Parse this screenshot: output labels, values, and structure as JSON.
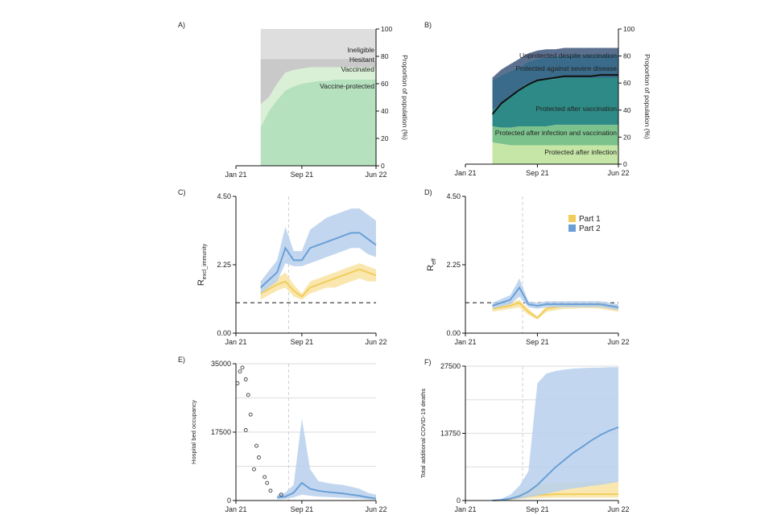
{
  "colors": {
    "part1": "#f2cd5c",
    "part1_band": "#f8e3a1",
    "part2": "#6a9fd6",
    "part2_band": "#b7d0ec",
    "ineligible": "#dedede",
    "hesitant": "#c9c9c9",
    "vaccinated": "#daf0d6",
    "vaccine_protected": "#b5e1bf",
    "unprotected": "#5b6f8f",
    "severe": "#3a6b8a",
    "after_vacc": "#2e8a86",
    "after_inf_vacc": "#7cc28c",
    "after_inf": "#c5e6a6",
    "observed": "#222222"
  },
  "chart_data": [
    {
      "panel": "A)",
      "type": "area",
      "x_ticks": [
        "Jan 21",
        "Sep 21",
        "Jun 22"
      ],
      "y_ticks": [
        "0",
        "20",
        "40",
        "60",
        "80",
        "100"
      ],
      "ylabel": "Proportion of population (%)",
      "ylim": [
        0,
        100
      ],
      "x": [
        "Apr 21",
        "May 21",
        "Jun 21",
        "Jul 21",
        "Aug 21",
        "Sep 21",
        "Oct 21",
        "Nov 21",
        "Dec 21",
        "Jan 22",
        "Feb 22",
        "Mar 22",
        "Apr 22",
        "May 22",
        "Jun 22"
      ],
      "series": [
        {
          "name": "Vaccine-protected",
          "values": [
            28,
            40,
            48,
            55,
            58,
            60,
            61,
            62,
            62,
            63,
            63,
            63,
            63,
            63,
            63
          ]
        },
        {
          "name": "Vaccinated",
          "values": [
            45,
            50,
            60,
            68,
            70,
            71,
            72,
            72,
            72,
            72,
            72,
            72,
            72,
            72,
            72
          ]
        },
        {
          "name": "Hesitant",
          "values": [
            78,
            78,
            78,
            78,
            78,
            78,
            78,
            78,
            78,
            78,
            78,
            78,
            78,
            78,
            78
          ]
        },
        {
          "name": "Ineligible",
          "values": [
            100,
            100,
            100,
            100,
            100,
            100,
            100,
            100,
            100,
            100,
            100,
            100,
            100,
            100,
            100
          ]
        }
      ],
      "labels": [
        "Ineligible",
        "Hesitant",
        "Vaccinated",
        "Vaccine-protected"
      ]
    },
    {
      "panel": "B)",
      "type": "area",
      "x_ticks": [
        "Jan 21",
        "Sep 21",
        "Jun 22"
      ],
      "y_ticks": [
        "0",
        "20",
        "40",
        "60",
        "80",
        "100"
      ],
      "ylabel": "Proportion of population (%)",
      "ylim": [
        0,
        100
      ],
      "x": [
        "Apr 21",
        "May 21",
        "Jun 21",
        "Jul 21",
        "Aug 21",
        "Sep 21",
        "Oct 21",
        "Nov 21",
        "Dec 21",
        "Jan 22",
        "Feb 22",
        "Mar 22",
        "Apr 22",
        "May 22",
        "Jun 22"
      ],
      "series": [
        {
          "name": "Protected after infection",
          "values": [
            16,
            15,
            14,
            14,
            14,
            14,
            14,
            14,
            14,
            14,
            14,
            14,
            14,
            14,
            14
          ]
        },
        {
          "name": "Protected after infection and vaccination",
          "values": [
            28,
            27,
            27,
            28,
            28,
            28,
            28,
            29,
            29,
            29,
            29,
            29,
            29,
            29,
            29
          ]
        },
        {
          "name": "Protected after vaccination",
          "values": [
            40,
            45,
            50,
            56,
            60,
            62,
            63,
            63,
            64,
            64,
            64,
            64,
            64,
            64,
            64
          ]
        },
        {
          "name": "Protected against severe disease",
          "values": [
            62,
            66,
            69,
            72,
            76,
            78,
            79,
            80,
            80,
            81,
            81,
            81,
            81,
            81,
            81
          ]
        },
        {
          "name": "Unprotected despite vaccination",
          "values": [
            64,
            70,
            74,
            78,
            82,
            84,
            85,
            85,
            86,
            86,
            86,
            86,
            86,
            86,
            86
          ]
        }
      ],
      "line": {
        "values": [
          37,
          45,
          50,
          55,
          59,
          62,
          63,
          64,
          65,
          65,
          65,
          65,
          66,
          66,
          66
        ]
      },
      "labels": [
        "Unprotected despite vaccination",
        "Protected against severe disease",
        "Protected after vaccination",
        "Protected after infection and vaccination",
        "Protected after infection"
      ]
    },
    {
      "panel": "C)",
      "type": "line",
      "x_ticks": [
        "Jan 21",
        "Sep 21",
        "Jun 22"
      ],
      "y_ticks": [
        "0.00",
        "2.25",
        "4.50"
      ],
      "ylabel": "R",
      "ylabel_sub": "excl_immunity",
      "ylim": [
        0,
        4.5
      ],
      "reference_y": 1.0,
      "x": [
        "Apr 21",
        "Jun 21",
        "Jul 21",
        "Aug 21",
        "Sep 21",
        "Oct 21",
        "Nov 21",
        "Dec 21",
        "Jan 22",
        "Feb 22",
        "Mar 22",
        "Apr 22",
        "May 22",
        "Jun 22"
      ],
      "series": [
        {
          "name": "Part 1",
          "values": [
            1.3,
            1.6,
            1.7,
            1.4,
            1.2,
            1.5,
            1.6,
            1.7,
            1.8,
            1.9,
            2.0,
            2.1,
            2.0,
            1.9
          ],
          "lower": [
            1.1,
            1.4,
            1.5,
            1.2,
            1.1,
            1.3,
            1.4,
            1.5,
            1.5,
            1.6,
            1.7,
            1.8,
            1.7,
            1.7
          ],
          "upper": [
            1.5,
            1.8,
            2.0,
            1.6,
            1.3,
            1.7,
            1.8,
            1.9,
            2.0,
            2.1,
            2.2,
            2.3,
            2.2,
            2.1
          ]
        },
        {
          "name": "Part 2",
          "values": [
            1.5,
            2.0,
            2.8,
            2.4,
            2.4,
            2.8,
            2.9,
            3.0,
            3.1,
            3.2,
            3.3,
            3.3,
            3.1,
            2.9
          ],
          "lower": [
            1.3,
            1.7,
            2.3,
            2.2,
            2.2,
            2.3,
            2.4,
            2.5,
            2.6,
            2.7,
            2.8,
            2.8,
            2.6,
            2.5
          ],
          "upper": [
            1.7,
            2.4,
            3.5,
            2.7,
            2.7,
            3.4,
            3.6,
            3.8,
            3.9,
            4.0,
            4.1,
            4.1,
            3.9,
            3.7
          ]
        }
      ]
    },
    {
      "panel": "D)",
      "type": "line",
      "x_ticks": [
        "Jan 21",
        "Sep 21",
        "Jun 22"
      ],
      "y_ticks": [
        "0.00",
        "2.25",
        "4.50"
      ],
      "ylabel": "R",
      "ylabel_sub": "eff",
      "ylim": [
        0,
        4.5
      ],
      "reference_y": 1.0,
      "legend": [
        "Part 1",
        "Part 2"
      ],
      "x": [
        "Apr 21",
        "Jun 21",
        "Jul 21",
        "Aug 21",
        "Sep 21",
        "Oct 21",
        "Nov 21",
        "Dec 21",
        "Jan 22",
        "Feb 22",
        "Mar 22",
        "Apr 22",
        "May 22",
        "Jun 22"
      ],
      "series": [
        {
          "name": "Part 1",
          "values": [
            0.8,
            0.9,
            1.0,
            0.7,
            0.5,
            0.8,
            0.85,
            0.9,
            0.9,
            0.92,
            0.92,
            0.9,
            0.85,
            0.8
          ],
          "lower": [
            0.7,
            0.8,
            0.85,
            0.6,
            0.45,
            0.7,
            0.75,
            0.8,
            0.8,
            0.82,
            0.82,
            0.8,
            0.75,
            0.7
          ],
          "upper": [
            0.9,
            1.0,
            1.1,
            0.8,
            0.55,
            0.9,
            0.95,
            1.0,
            1.0,
            1.0,
            1.0,
            1.0,
            0.95,
            0.9
          ]
        },
        {
          "name": "Part 2",
          "values": [
            0.9,
            1.1,
            1.5,
            0.95,
            0.9,
            0.95,
            0.95,
            0.95,
            0.95,
            0.95,
            0.95,
            0.95,
            0.9,
            0.85
          ],
          "lower": [
            0.8,
            0.95,
            1.2,
            0.85,
            0.8,
            0.85,
            0.85,
            0.85,
            0.85,
            0.85,
            0.85,
            0.85,
            0.8,
            0.75
          ],
          "upper": [
            1.0,
            1.25,
            1.8,
            1.05,
            1.0,
            1.05,
            1.05,
            1.05,
            1.05,
            1.05,
            1.05,
            1.05,
            1.0,
            0.95
          ]
        }
      ]
    },
    {
      "panel": "E)",
      "type": "line",
      "x_ticks": [
        "Jan 21",
        "Sep 21",
        "Jun 22"
      ],
      "y_ticks": [
        "0",
        "17500",
        "35000"
      ],
      "ylabel": "Hospital bed occupancy",
      "ylim": [
        0,
        35000
      ],
      "reference_lines": [
        8750,
        26250
      ],
      "observed": {
        "x": [
          "Jan 21",
          "Jan 21",
          "Jan 21",
          "Feb 21",
          "Feb 21",
          "Feb 21",
          "Feb 21",
          "Mar 21",
          "Mar 21",
          "Mar 21",
          "Apr 21",
          "Apr 21",
          "May 21",
          "Jun 21"
        ],
        "values": [
          30000,
          33000,
          34000,
          31000,
          27000,
          22000,
          18000,
          14000,
          11000,
          8000,
          6000,
          4500,
          2500,
          1500
        ]
      },
      "x": [
        "Jun 21",
        "Jul 21",
        "Aug 21",
        "Sep 21",
        "Oct 21",
        "Nov 21",
        "Dec 21",
        "Jan 22",
        "Feb 22",
        "Mar 22",
        "Apr 22",
        "May 22",
        "Jun 22"
      ],
      "series": [
        {
          "name": "Part 2",
          "values": [
            800,
            1000,
            2000,
            4500,
            3000,
            2500,
            2200,
            2000,
            1800,
            1500,
            1200,
            800,
            500
          ],
          "lower": [
            300,
            400,
            800,
            1500,
            1200,
            1000,
            900,
            800,
            700,
            600,
            500,
            300,
            200
          ],
          "upper": [
            1500,
            2000,
            4000,
            21000,
            8000,
            5000,
            4500,
            4200,
            4000,
            3500,
            3000,
            2000,
            1500
          ]
        }
      ]
    },
    {
      "panel": "F)",
      "type": "line",
      "x_ticks": [
        "Jan 21",
        "Sep 21",
        "Jun 22"
      ],
      "y_ticks": [
        "0",
        "13750",
        "27500"
      ],
      "ylabel": "Total additional COVID-19 deaths",
      "ylim": [
        0,
        27500
      ],
      "reference_lines": [
        6875,
        20625
      ],
      "x": [
        "Apr 21",
        "May 21",
        "Jun 21",
        "Jul 21",
        "Aug 21",
        "Sep 21",
        "Oct 21",
        "Nov 21",
        "Dec 21",
        "Jan 22",
        "Feb 22",
        "Mar 22",
        "Apr 22",
        "May 22",
        "Jun 22"
      ],
      "series": [
        {
          "name": "Part 1",
          "values": [
            0,
            100,
            300,
            600,
            900,
            1100,
            1200,
            1300,
            1300,
            1300,
            1300,
            1300,
            1300,
            1300,
            1300
          ],
          "lower": [
            0,
            50,
            150,
            300,
            400,
            500,
            550,
            600,
            600,
            600,
            600,
            600,
            600,
            600,
            600
          ],
          "upper": [
            0,
            200,
            600,
            1500,
            2500,
            3200,
            3500,
            3600,
            3700,
            3700,
            3700,
            3800,
            3900,
            4000,
            4000
          ]
        },
        {
          "name": "Part 2",
          "values": [
            0,
            100,
            400,
            900,
            1800,
            3200,
            5000,
            6800,
            8300,
            9800,
            11000,
            12300,
            13400,
            14300,
            15000
          ],
          "lower": [
            0,
            50,
            200,
            400,
            700,
            1000,
            1400,
            1800,
            2200,
            2500,
            2700,
            3000,
            3200,
            3500,
            3800
          ],
          "upper": [
            0,
            400,
            1200,
            3000,
            6000,
            24000,
            26000,
            26500,
            26800,
            27000,
            27100,
            27200,
            27200,
            27300,
            27300
          ]
        }
      ]
    }
  ]
}
